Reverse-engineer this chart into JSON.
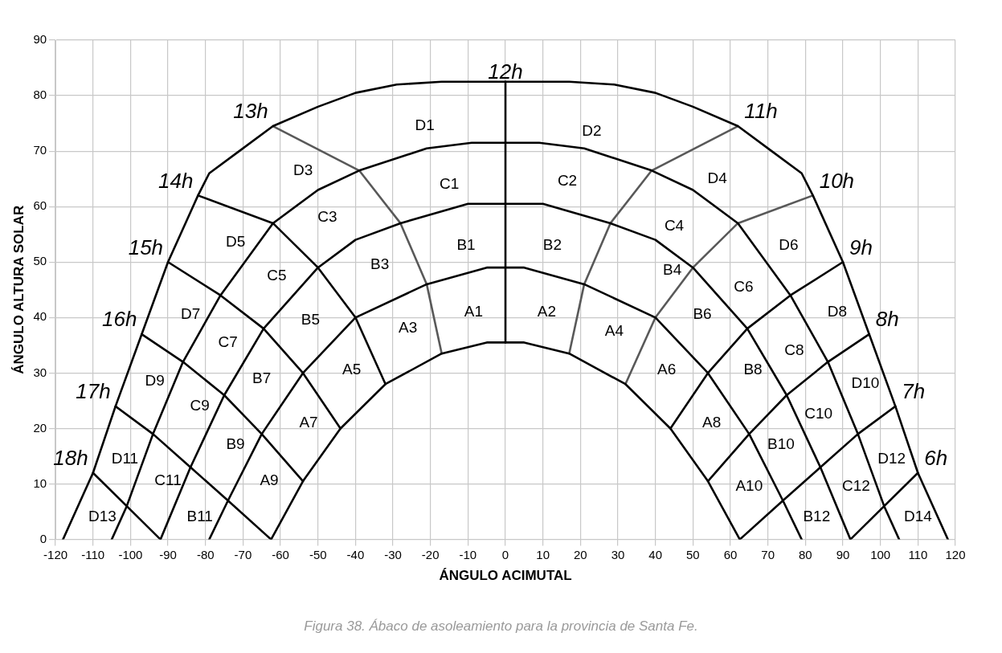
{
  "chart_data": {
    "type": "line",
    "xlabel": "ÁNGULO ACIMUTAL",
    "ylabel": "ÁNGULO ALTURA SOLAR",
    "xlim": [
      -120,
      120
    ],
    "xticks": [
      -120,
      -110,
      -100,
      -90,
      -80,
      -70,
      -60,
      -50,
      -40,
      -30,
      -20,
      -10,
      0,
      10,
      20,
      30,
      40,
      50,
      60,
      70,
      80,
      90,
      100,
      110,
      120
    ],
    "ylim": [
      0,
      90
    ],
    "yticks": [
      0,
      10,
      20,
      30,
      40,
      50,
      60,
      70,
      80,
      90
    ],
    "grid": true,
    "marker": "none",
    "line_style": "solid",
    "series": [
      {
        "color": "#000000",
        "x": [
          -118,
          -110,
          -104,
          -97,
          -90,
          -82,
          -79,
          -71,
          -62,
          -50,
          -40,
          -29,
          -17,
          0,
          17,
          29,
          40,
          50,
          62,
          71,
          79,
          82,
          90,
          97,
          104,
          110,
          118
        ],
        "values": [
          0,
          12,
          24,
          37,
          50,
          62,
          66,
          70,
          74.5,
          78,
          80.5,
          82,
          82.5,
          82.5,
          82.5,
          82,
          80.5,
          78,
          74.5,
          70,
          66,
          62,
          50,
          37,
          24,
          12,
          0
        ]
      },
      {
        "color": "#000000",
        "x": [
          -105,
          -101,
          -94,
          -86,
          -76,
          -62,
          -50,
          -39,
          -21,
          -9,
          0,
          9,
          21,
          39,
          50,
          62,
          76,
          86,
          94,
          101,
          105
        ],
        "values": [
          0,
          6,
          19,
          32,
          44,
          57,
          63,
          66.5,
          70.5,
          71.5,
          71.5,
          71.5,
          70.5,
          66.5,
          63,
          57,
          44,
          32,
          19,
          6,
          0
        ]
      },
      {
        "color": "#000000",
        "x": [
          -92,
          -84,
          -75,
          -64.5,
          -50,
          -40,
          -28,
          -10,
          0,
          10,
          28,
          40,
          50,
          64.5,
          75,
          84,
          92
        ],
        "values": [
          0,
          13,
          26,
          38,
          49,
          54,
          57,
          60.5,
          60.5,
          60.5,
          57,
          54,
          49,
          38,
          26,
          13,
          0
        ]
      },
      {
        "color": "#000000",
        "x": [
          -79,
          -74,
          -65,
          -54,
          -40,
          -21,
          -5,
          0,
          5,
          21,
          40,
          54,
          65,
          74,
          79
        ],
        "values": [
          0,
          7,
          19,
          30,
          40,
          46,
          49,
          49,
          49,
          46,
          40,
          30,
          19,
          7,
          0
        ]
      },
      {
        "color": "#000000",
        "x": [
          -62.5,
          -54,
          -44,
          -32,
          -17,
          -5,
          0,
          5,
          17,
          32,
          44,
          54,
          62.5
        ],
        "values": [
          0,
          10.5,
          20,
          28,
          33.5,
          35.5,
          35.5,
          35.5,
          33.5,
          28,
          20,
          10.5,
          0
        ]
      },
      {
        "name": "18h",
        "color": "#000000",
        "x": [
          -110,
          -101,
          -92
        ],
        "values": [
          12,
          6,
          0
        ]
      },
      {
        "name": "17h",
        "color": "#000000",
        "x": [
          -104,
          -94,
          -84,
          -74,
          -62.5
        ],
        "values": [
          24,
          19,
          13,
          7,
          0
        ]
      },
      {
        "name": "16h",
        "color": "#000000",
        "x": [
          -97,
          -86,
          -75,
          -65,
          -54
        ],
        "values": [
          37,
          32,
          26,
          19,
          10.5
        ]
      },
      {
        "name": "15h",
        "color": "#000000",
        "x": [
          -90,
          -76,
          -64.5,
          -54,
          -44
        ],
        "values": [
          50,
          44,
          38,
          30,
          20
        ]
      },
      {
        "name": "14h",
        "color": "#000000",
        "x": [
          -82,
          -62,
          -50,
          -40,
          -32
        ],
        "values": [
          62,
          57,
          49,
          40,
          28
        ]
      },
      {
        "name": "13h",
        "color": "#595959",
        "x": [
          -62,
          -39,
          -28,
          -21,
          -17
        ],
        "values": [
          74.5,
          66.5,
          57,
          46,
          33.5
        ]
      },
      {
        "name": "12h",
        "color": "#000000",
        "x": [
          0,
          0
        ],
        "values": [
          82.5,
          35.5
        ]
      },
      {
        "name": "11h",
        "color": "#595959",
        "x": [
          62,
          39,
          28,
          21,
          17
        ],
        "values": [
          74.5,
          66.5,
          57,
          46,
          33.5
        ]
      },
      {
        "name": "10h",
        "color": "#595959",
        "x": [
          82,
          62,
          50,
          40,
          32
        ],
        "values": [
          62,
          57,
          49,
          40,
          28
        ]
      },
      {
        "name": "9h",
        "color": "#000000",
        "x": [
          90,
          76,
          64.5,
          54,
          44
        ],
        "values": [
          50,
          44,
          38,
          30,
          20
        ]
      },
      {
        "name": "8h",
        "color": "#000000",
        "x": [
          97,
          86,
          75,
          65,
          54
        ],
        "values": [
          37,
          32,
          26,
          19,
          10.5
        ]
      },
      {
        "name": "7h",
        "color": "#000000",
        "x": [
          104,
          94,
          84,
          74,
          62.5
        ],
        "values": [
          24,
          19,
          13,
          7,
          0
        ]
      },
      {
        "name": "6h",
        "color": "#000000",
        "x": [
          110,
          101,
          92
        ],
        "values": [
          12,
          6,
          0
        ]
      }
    ],
    "annotations": [
      "D1",
      "D2",
      "D3",
      "C1",
      "C2",
      "D4",
      "C3",
      "C4",
      "D5",
      "B1",
      "B2",
      "D6",
      "B3",
      "C5",
      "B4",
      "C6",
      "A1",
      "A2",
      "D7",
      "B5",
      "A3",
      "A4",
      "B6",
      "D8",
      "C7",
      "C8",
      "B8",
      "A5",
      "A6",
      "D9",
      "B7",
      "D10",
      "C9",
      "A7",
      "C10",
      "A8",
      "B10",
      "D11",
      "D12",
      "B9",
      "C11",
      "A9",
      "C12",
      "A10",
      "D13",
      "B11",
      "B12",
      "D14",
      "Figura 38. Ábaco de asoleamiento para la provincia de Santa Fe."
    ]
  }
}
